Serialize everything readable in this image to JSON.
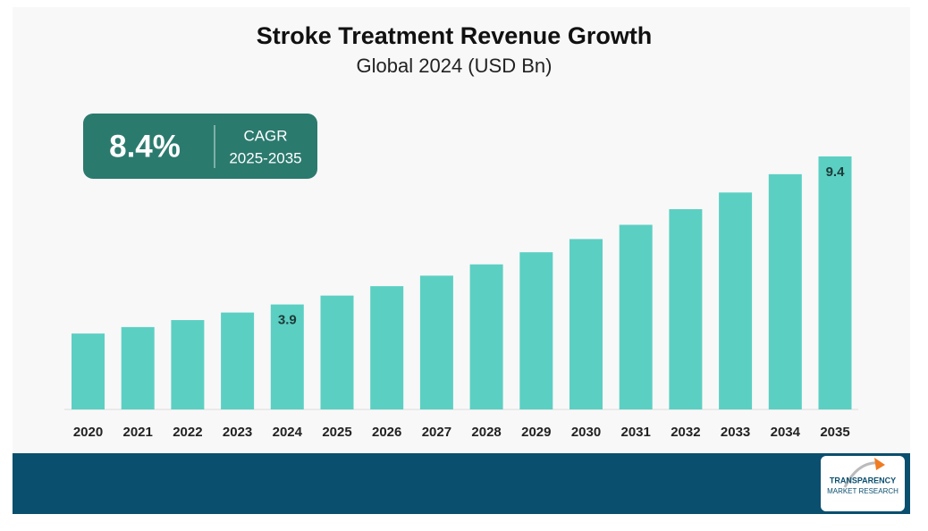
{
  "chart_data": {
    "type": "bar",
    "title": "Stroke Treatment Revenue Growth",
    "subtitle": "Global 2024 (USD Bn)",
    "categories": [
      "2020",
      "2021",
      "2022",
      "2023",
      "2024",
      "2025",
      "2026",
      "2027",
      "2028",
      "2029",
      "2030",
      "2031",
      "2032",
      "2033",
      "2034",
      "2035"
    ],
    "values": [
      2.82,
      3.06,
      3.32,
      3.6,
      3.9,
      4.23,
      4.58,
      4.97,
      5.39,
      5.84,
      6.33,
      6.86,
      7.44,
      8.06,
      8.74,
      9.4
    ],
    "value_labels": [
      null,
      null,
      null,
      null,
      "3.9",
      null,
      null,
      null,
      null,
      null,
      null,
      null,
      null,
      null,
      null,
      "9.4"
    ],
    "color": "#5ccfc3",
    "annotations": {
      "cagr_value": "8.4%",
      "cagr_label": "CAGR",
      "cagr_period": "2025-2035"
    },
    "logo": {
      "line1": "TRANSPARENCY",
      "line2": "MARKET RESEARCH"
    }
  }
}
